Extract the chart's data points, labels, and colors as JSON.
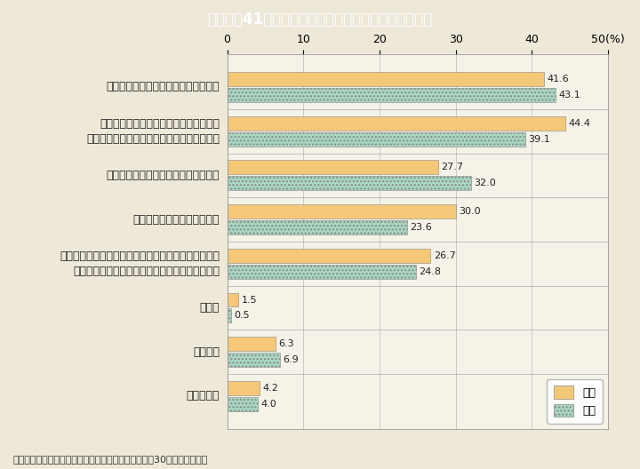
{
  "title": "Ｉ－特－41図　地域社会での活動への参加を促す方策",
  "title_bg_color": "#29b6c8",
  "title_text_color": "#ffffff",
  "background_color": "#ede8d8",
  "plot_bg_color": "#f5f2e8",
  "categories": [
    "地域や社会での活動に関する情報提供",
    "地域や社会に関する講習会の開催など，\n活動への参加につながるようなきっかけ作り",
    "活動の成果が社会的に評価されること",
    "交通費などの必要経費の支援",
    "コーディネーターなど，地域や社会での活動を支える\n人的体制や活動の拠点となる場が整っていること",
    "その他",
    "特にない",
    "わからない"
  ],
  "female_values": [
    41.6,
    44.4,
    27.7,
    30.0,
    26.7,
    1.5,
    6.3,
    4.2
  ],
  "male_values": [
    43.1,
    39.1,
    32.0,
    23.6,
    24.8,
    0.5,
    6.9,
    4.0
  ],
  "female_color": "#f5c878",
  "male_color": "#a8d8c0",
  "xlabel_text": "50（%）",
  "xlim": [
    0,
    50
  ],
  "xticks": [
    0,
    10,
    20,
    30,
    40,
    50
  ],
  "xtick_labels": [
    "0",
    "10",
    "20",
    "30",
    "40",
    "50（%）"
  ],
  "bar_height": 0.32,
  "footnote": "（備考）内閣府「生涯学習に関する世論調査」（平成30年）より作成。",
  "legend_female": "女性",
  "legend_male": "男性",
  "value_fontsize": 8,
  "label_fontsize": 9,
  "tick_fontsize": 9
}
